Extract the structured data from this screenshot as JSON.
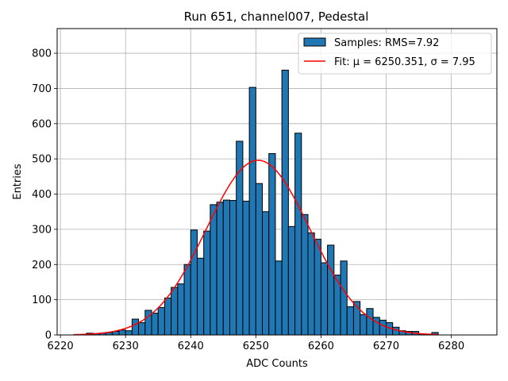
{
  "chart_data": {
    "type": "bar",
    "title": "Run 651, channel007, Pedestal",
    "xlabel": "ADC Counts",
    "ylabel": "Entries",
    "xlim": [
      6219.5,
      6287.0
    ],
    "ylim": [
      0,
      870
    ],
    "xticks": [
      6220,
      6230,
      6240,
      6250,
      6260,
      6270,
      6280
    ],
    "yticks": [
      0,
      100,
      200,
      300,
      400,
      500,
      600,
      700,
      800
    ],
    "grid": true,
    "legend_position": "top-right",
    "colors": {
      "bars": "#1f77b4",
      "bar_edge": "#000000",
      "fit": "#ff0000",
      "grid": "#b0b0b0"
    },
    "histogram": {
      "name": "Samples: RMS=7.92",
      "bin_width": 1,
      "bin_starts": [
        6224,
        6225,
        6226,
        6227,
        6228,
        6229,
        6230,
        6231,
        6232,
        6233,
        6234,
        6235,
        6236,
        6237,
        6238,
        6239,
        6240,
        6241,
        6242,
        6243,
        6244,
        6245,
        6246,
        6247,
        6248,
        6249,
        6250,
        6251,
        6252,
        6253,
        6254,
        6255,
        6256,
        6257,
        6258,
        6259,
        6260,
        6261,
        6262,
        6263,
        6264,
        6265,
        6266,
        6267,
        6268,
        6269,
        6270,
        6271,
        6272,
        6273,
        6274,
        6275,
        6276,
        6277
      ],
      "counts": [
        5,
        4,
        5,
        7,
        10,
        14,
        12,
        45,
        35,
        70,
        62,
        78,
        105,
        135,
        145,
        200,
        298,
        218,
        295,
        370,
        377,
        383,
        382,
        550,
        380,
        703,
        430,
        350,
        515,
        210,
        752,
        308,
        573,
        342,
        290,
        272,
        205,
        255,
        170,
        210,
        80,
        95,
        58,
        75,
        50,
        42,
        35,
        22,
        12,
        10,
        10,
        3,
        2,
        7
      ]
    },
    "fit": {
      "name": "Fit: μ = 6250.351, σ = 7.95",
      "mu": 6250.351,
      "sigma": 7.95,
      "amplitude": 496,
      "x_range": [
        6222,
        6278
      ]
    }
  }
}
